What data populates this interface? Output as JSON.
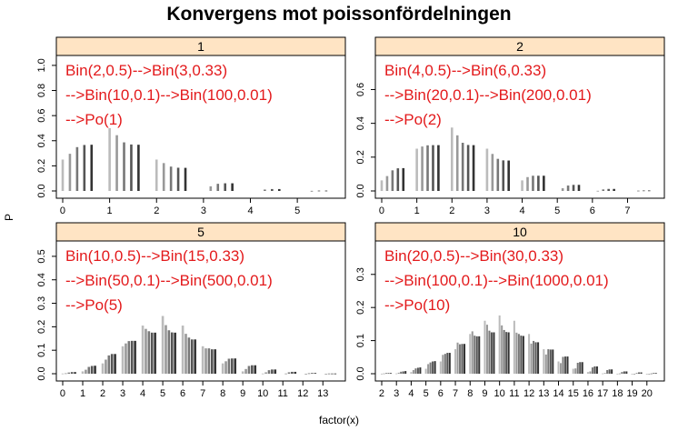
{
  "title": "Konvergens mot poissonfördelningen",
  "ylabel": "P",
  "xlabel": "factor(x)",
  "colors": {
    "strip_bg": "#ffe4c4",
    "annotation": "#e31a1c",
    "bars": [
      "#bbbbbb",
      "#999999",
      "#777777",
      "#555555",
      "#333333"
    ]
  },
  "chart_data": [
    {
      "type": "bar",
      "strip": "1",
      "annotation": [
        "Bin(2,0.5)-->Bin(3,0.33)",
        "-->Bin(10,0.1)-->Bin(100,0.01)",
        "-->Po(1)"
      ],
      "x_ticks": [
        "0",
        "1",
        "2",
        "3",
        "4",
        "5"
      ],
      "y_ticks": [
        "0.0",
        "0.2",
        "0.4",
        "0.6",
        "0.8",
        "1.0"
      ],
      "ylim": [
        0,
        1.05
      ],
      "series": [
        {
          "label": "Bin(2,0.5)",
          "x": [
            0,
            1,
            2
          ],
          "values": [
            0.25,
            0.5,
            0.25
          ]
        },
        {
          "label": "Bin(3,0.33)",
          "x": [
            0,
            1,
            2,
            3
          ],
          "values": [
            0.296,
            0.444,
            0.222,
            0.037
          ]
        },
        {
          "label": "Bin(10,0.1)",
          "x": [
            0,
            1,
            2,
            3,
            4,
            5
          ],
          "values": [
            0.349,
            0.387,
            0.194,
            0.057,
            0.011,
            0.001
          ]
        },
        {
          "label": "Bin(100,0.01)",
          "x": [
            0,
            1,
            2,
            3,
            4,
            5
          ],
          "values": [
            0.366,
            0.37,
            0.185,
            0.061,
            0.015,
            0.003
          ]
        },
        {
          "label": "Po(1)",
          "x": [
            0,
            1,
            2,
            3,
            4,
            5
          ],
          "values": [
            0.368,
            0.368,
            0.184,
            0.061,
            0.015,
            0.003
          ]
        }
      ]
    },
    {
      "type": "bar",
      "strip": "2",
      "annotation": [
        "Bin(4,0.5)-->Bin(6,0.33)",
        "-->Bin(20,0.1)-->Bin(200,0.01)",
        "-->Po(2)"
      ],
      "x_ticks": [
        "0",
        "1",
        "2",
        "3",
        "4",
        "5",
        "6",
        "7"
      ],
      "y_ticks": [
        "0.0",
        "0.2",
        "0.4",
        "0.6"
      ],
      "ylim": [
        0,
        0.78
      ],
      "series": [
        {
          "label": "Bin(4,0.5)",
          "x": [
            0,
            1,
            2,
            3,
            4
          ],
          "values": [
            0.0625,
            0.25,
            0.375,
            0.25,
            0.0625
          ]
        },
        {
          "label": "Bin(6,0.33)",
          "x": [
            0,
            1,
            2,
            3,
            4,
            5,
            6
          ],
          "values": [
            0.088,
            0.263,
            0.329,
            0.219,
            0.082,
            0.016,
            0.001
          ]
        },
        {
          "label": "Bin(20,0.1)",
          "x": [
            0,
            1,
            2,
            3,
            4,
            5,
            6,
            7
          ],
          "values": [
            0.122,
            0.27,
            0.285,
            0.19,
            0.09,
            0.032,
            0.009,
            0.002
          ]
        },
        {
          "label": "Bin(200,0.01)",
          "x": [
            0,
            1,
            2,
            3,
            4,
            5,
            6,
            7
          ],
          "values": [
            0.134,
            0.271,
            0.272,
            0.181,
            0.09,
            0.036,
            0.012,
            0.003
          ]
        },
        {
          "label": "Po(2)",
          "x": [
            0,
            1,
            2,
            3,
            4,
            5,
            6,
            7
          ],
          "values": [
            0.135,
            0.271,
            0.271,
            0.18,
            0.09,
            0.036,
            0.012,
            0.003
          ]
        }
      ]
    },
    {
      "type": "bar",
      "strip": "5",
      "annotation": [
        "Bin(10,0.5)-->Bin(15,0.33)",
        "-->Bin(50,0.1)-->Bin(500,0.01)",
        "-->Po(5)"
      ],
      "x_ticks": [
        "0",
        "1",
        "2",
        "3",
        "4",
        "5",
        "6",
        "7",
        "8",
        "9",
        "10",
        "11",
        "12",
        "13"
      ],
      "y_ticks": [
        "0.0",
        "0.1",
        "0.2",
        "0.3",
        "0.4",
        "0.5"
      ],
      "ylim": [
        0,
        0.55
      ],
      "series": [
        {
          "label": "Bin(10,0.5)",
          "x": [
            0,
            1,
            2,
            3,
            4,
            5,
            6,
            7,
            8,
            9,
            10
          ],
          "values": [
            0.001,
            0.01,
            0.044,
            0.117,
            0.205,
            0.246,
            0.205,
            0.117,
            0.044,
            0.01,
            0.001
          ]
        },
        {
          "label": "Bin(15,0.33)",
          "x": [
            0,
            1,
            2,
            3,
            4,
            5,
            6,
            7,
            8,
            9,
            10,
            11,
            12,
            13
          ],
          "values": [
            0.002,
            0.017,
            0.06,
            0.129,
            0.191,
            0.207,
            0.17,
            0.108,
            0.053,
            0.02,
            0.006,
            0.001,
            0.0,
            0.0
          ]
        },
        {
          "label": "Bin(50,0.1)",
          "x": [
            0,
            1,
            2,
            3,
            4,
            5,
            6,
            7,
            8,
            9,
            10,
            11,
            12,
            13
          ],
          "values": [
            0.005,
            0.029,
            0.078,
            0.139,
            0.181,
            0.185,
            0.154,
            0.108,
            0.064,
            0.033,
            0.015,
            0.006,
            0.002,
            0.001
          ]
        },
        {
          "label": "Bin(500,0.01)",
          "x": [
            0,
            1,
            2,
            3,
            4,
            5,
            6,
            7,
            8,
            9,
            10,
            11,
            12,
            13
          ],
          "values": [
            0.007,
            0.033,
            0.084,
            0.14,
            0.175,
            0.176,
            0.146,
            0.104,
            0.065,
            0.036,
            0.018,
            0.008,
            0.003,
            0.001
          ]
        },
        {
          "label": "Po(5)",
          "x": [
            0,
            1,
            2,
            3,
            4,
            5,
            6,
            7,
            8,
            9,
            10,
            11,
            12,
            13
          ],
          "values": [
            0.007,
            0.034,
            0.084,
            0.14,
            0.175,
            0.175,
            0.146,
            0.104,
            0.065,
            0.036,
            0.018,
            0.008,
            0.003,
            0.001
          ]
        }
      ]
    },
    {
      "type": "bar",
      "strip": "10",
      "annotation": [
        "Bin(20,0.5)-->Bin(30,0.33)",
        "-->Bin(100,0.1)-->Bin(1000,0.01)",
        "-->Po(10)"
      ],
      "x_ticks": [
        "2",
        "3",
        "4",
        "5",
        "6",
        "7",
        "8",
        "9",
        "10",
        "11",
        "12",
        "13",
        "14",
        "15",
        "16",
        "17",
        "18",
        "19",
        "20"
      ],
      "y_ticks": [
        "0.0",
        "0.1",
        "0.2",
        "0.3"
      ],
      "ylim": [
        0,
        0.39
      ],
      "series": [
        {
          "label": "Bin(20,0.5)",
          "x": [
            2,
            3,
            4,
            5,
            6,
            7,
            8,
            9,
            10,
            11,
            12,
            13,
            14,
            15,
            16,
            17,
            18,
            19,
            20
          ],
          "values": [
            0.0002,
            0.001,
            0.005,
            0.015,
            0.037,
            0.074,
            0.12,
            0.16,
            0.176,
            0.16,
            0.12,
            0.074,
            0.037,
            0.015,
            0.005,
            0.001,
            0.0002,
            0.0,
            0.0
          ]
        },
        {
          "label": "Bin(30,0.33)",
          "x": [
            2,
            3,
            4,
            5,
            6,
            7,
            8,
            9,
            10,
            11,
            12,
            13,
            14,
            15,
            16,
            17,
            18,
            19,
            20
          ],
          "values": [
            0.001,
            0.003,
            0.011,
            0.029,
            0.057,
            0.094,
            0.128,
            0.148,
            0.146,
            0.124,
            0.091,
            0.058,
            0.032,
            0.016,
            0.007,
            0.002,
            0.001,
            0.0,
            0.0
          ]
        },
        {
          "label": "Bin(100,0.1)",
          "x": [
            2,
            3,
            4,
            5,
            6,
            7,
            8,
            9,
            10,
            11,
            12,
            13,
            14,
            15,
            16,
            17,
            18,
            19,
            20
          ],
          "values": [
            0.002,
            0.006,
            0.016,
            0.034,
            0.06,
            0.089,
            0.115,
            0.13,
            0.132,
            0.12,
            0.099,
            0.074,
            0.051,
            0.033,
            0.019,
            0.011,
            0.005,
            0.002,
            0.001
          ]
        },
        {
          "label": "Bin(1000,0.01)",
          "x": [
            2,
            3,
            4,
            5,
            6,
            7,
            8,
            9,
            10,
            11,
            12,
            13,
            14,
            15,
            16,
            17,
            18,
            19,
            20
          ],
          "values": [
            0.002,
            0.007,
            0.018,
            0.037,
            0.063,
            0.09,
            0.113,
            0.125,
            0.126,
            0.115,
            0.095,
            0.073,
            0.052,
            0.035,
            0.022,
            0.013,
            0.007,
            0.004,
            0.002
          ]
        },
        {
          "label": "Po(10)",
          "x": [
            2,
            3,
            4,
            5,
            6,
            7,
            8,
            9,
            10,
            11,
            12,
            13,
            14,
            15,
            16,
            17,
            18,
            19,
            20
          ],
          "values": [
            0.002,
            0.008,
            0.019,
            0.038,
            0.063,
            0.09,
            0.113,
            0.125,
            0.125,
            0.114,
            0.095,
            0.073,
            0.052,
            0.035,
            0.022,
            0.013,
            0.007,
            0.004,
            0.002
          ]
        }
      ]
    }
  ]
}
